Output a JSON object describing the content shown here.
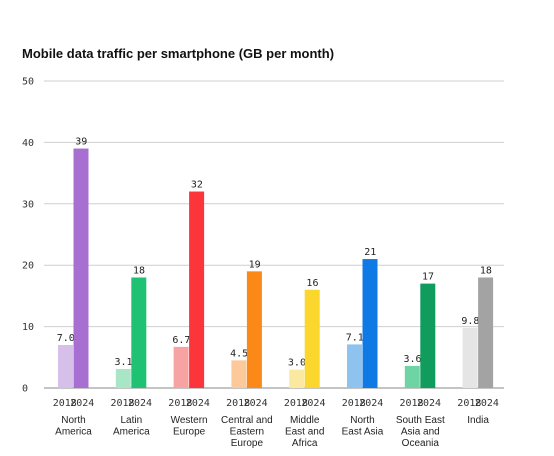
{
  "chart_data": {
    "type": "bar",
    "title": "Mobile data traffic per smartphone (GB per month)",
    "xlabel": "",
    "ylabel": "",
    "ylim": [
      0,
      50
    ],
    "yticks": [
      "0",
      "10",
      "20",
      "30",
      "40",
      "50"
    ],
    "grid": true,
    "categories": [
      {
        "name": [
          "North",
          "America"
        ],
        "years": [
          "2018",
          "2024"
        ],
        "values": [
          7.0,
          39
        ],
        "labels": [
          "7.0",
          "39"
        ],
        "colors": [
          "#d6bfe9",
          "#a66fd1"
        ]
      },
      {
        "name": [
          "Latin",
          "America"
        ],
        "years": [
          "2018",
          "2024"
        ],
        "values": [
          3.1,
          18
        ],
        "labels": [
          "3.1",
          "18"
        ],
        "colors": [
          "#a9e6c6",
          "#1fc173"
        ]
      },
      {
        "name": [
          "Western",
          "Europe"
        ],
        "years": [
          "2018",
          "2024"
        ],
        "values": [
          6.7,
          32
        ],
        "labels": [
          "6.7",
          "32"
        ],
        "colors": [
          "#f7a3a3",
          "#fb353a"
        ]
      },
      {
        "name": [
          "Central and",
          "Eastern",
          "Europe"
        ],
        "years": [
          "2018",
          "2024"
        ],
        "values": [
          4.5,
          19
        ],
        "labels": [
          "4.5",
          "19"
        ],
        "colors": [
          "#fbc99a",
          "#fb8917"
        ]
      },
      {
        "name": [
          "Middle",
          "East and",
          "Africa"
        ],
        "years": [
          "2018",
          "2024"
        ],
        "values": [
          3.0,
          16
        ],
        "labels": [
          "3.0",
          "16"
        ],
        "colors": [
          "#fbe9a2",
          "#fbd62d"
        ]
      },
      {
        "name": [
          "North",
          "East Asia"
        ],
        "years": [
          "2018",
          "2024"
        ],
        "values": [
          7.1,
          21
        ],
        "labels": [
          "7.1",
          "21"
        ],
        "colors": [
          "#8ec3f0",
          "#0f7ae5"
        ]
      },
      {
        "name": [
          "South East",
          "Asia and",
          "Oceania"
        ],
        "years": [
          "2018",
          "2024"
        ],
        "values": [
          3.6,
          17
        ],
        "labels": [
          "3.6",
          "17"
        ],
        "colors": [
          "#6ed4a4",
          "#109c5c"
        ]
      },
      {
        "name": [
          "India"
        ],
        "years": [
          "2018",
          "2024"
        ],
        "values": [
          9.8,
          18
        ],
        "labels": [
          "9.8",
          "18"
        ],
        "colors": [
          "#e5e5e5",
          "#a3a3a3"
        ]
      }
    ]
  }
}
